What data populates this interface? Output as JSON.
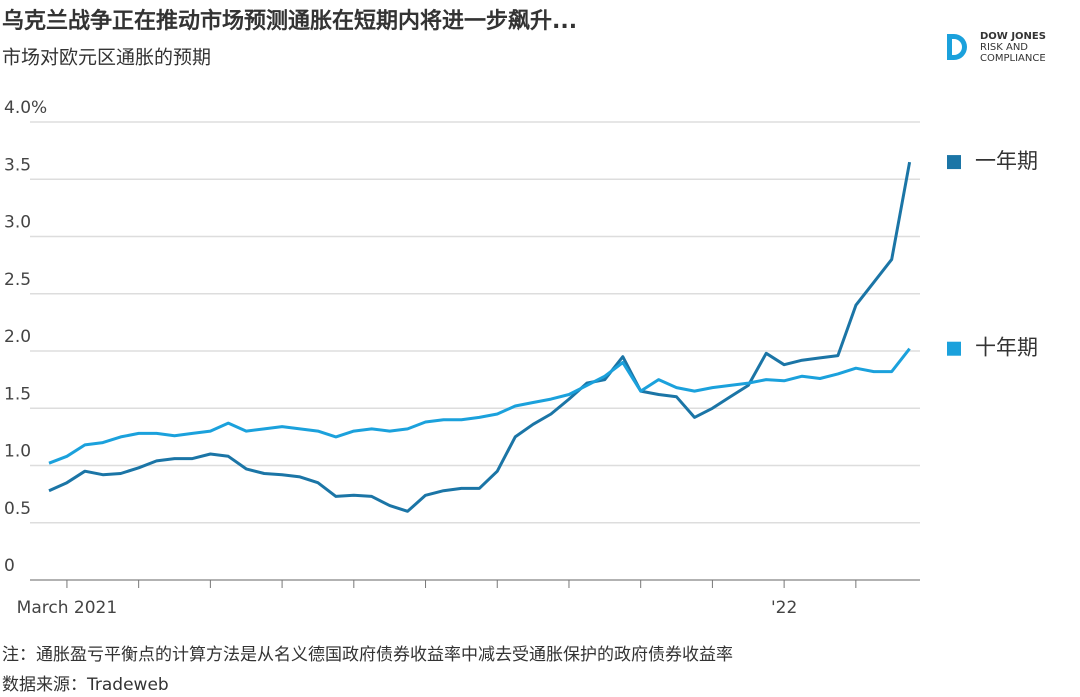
{
  "chart_data": {
    "type": "line",
    "title": "乌克兰战争正在推动市场预测通胀在短期内将进一步飙升...",
    "subtitle": "市场对欧元区通胀的预期",
    "logo": [
      "DOW JONES",
      "RISK AND",
      "COMPLIANCE"
    ],
    "note": "注：通胀盈亏平衡点的计算方法是从名义德国政府债券收益率中减去受通胀保护的政府债券收益率",
    "source": "数据来源：Tradeweb",
    "categories": [
      null,
      "March 2021",
      null,
      null,
      null,
      null,
      null,
      null,
      null,
      null,
      null,
      null,
      null,
      null,
      null,
      null,
      null,
      null,
      null,
      null,
      null,
      null,
      null,
      null,
      null,
      null,
      null,
      null,
      null,
      null,
      null,
      null,
      null,
      null,
      null,
      null,
      null,
      null,
      null,
      null,
      null,
      "'22",
      null,
      null,
      null,
      null,
      null,
      null,
      null
    ],
    "series": [
      {
        "name": "一年期",
        "color": "#1b75a6",
        "values": [
          0.78,
          0.85,
          0.95,
          0.92,
          0.93,
          0.98,
          1.04,
          1.06,
          1.06,
          1.1,
          1.08,
          0.97,
          0.93,
          0.92,
          0.9,
          0.85,
          0.73,
          0.74,
          0.73,
          0.65,
          0.6,
          0.74,
          0.78,
          0.8,
          0.8,
          0.95,
          1.25,
          1.36,
          1.45,
          1.58,
          1.72,
          1.75,
          1.95,
          1.65,
          1.62,
          1.6,
          1.42,
          1.5,
          1.6,
          1.7,
          1.98,
          1.88,
          1.92,
          1.94,
          1.96,
          2.4,
          2.6,
          2.8,
          3.65
        ]
      },
      {
        "name": "十年期",
        "color": "#1ba1dc",
        "values": [
          1.02,
          1.08,
          1.18,
          1.2,
          1.25,
          1.28,
          1.28,
          1.26,
          1.28,
          1.3,
          1.37,
          1.3,
          1.32,
          1.34,
          1.32,
          1.3,
          1.25,
          1.3,
          1.32,
          1.3,
          1.32,
          1.38,
          1.4,
          1.4,
          1.42,
          1.45,
          1.52,
          1.55,
          1.58,
          1.62,
          1.7,
          1.78,
          1.9,
          1.65,
          1.75,
          1.68,
          1.65,
          1.68,
          1.7,
          1.72,
          1.75,
          1.74,
          1.78,
          1.76,
          1.8,
          1.85,
          1.82,
          1.82,
          2.02
        ]
      }
    ],
    "ylim": [
      0,
      4.0
    ],
    "yticks": [
      0,
      0.5,
      {
        "value": 1.0,
        "label": "1.0"
      },
      1.5,
      {
        "value": 2.0,
        "label": "2.0"
      },
      2.5,
      {
        "value": 3.0,
        "label": "3.0"
      },
      3.5,
      {
        "value": 4.0,
        "label": "4.0%"
      }
    ],
    "grid": true
  }
}
